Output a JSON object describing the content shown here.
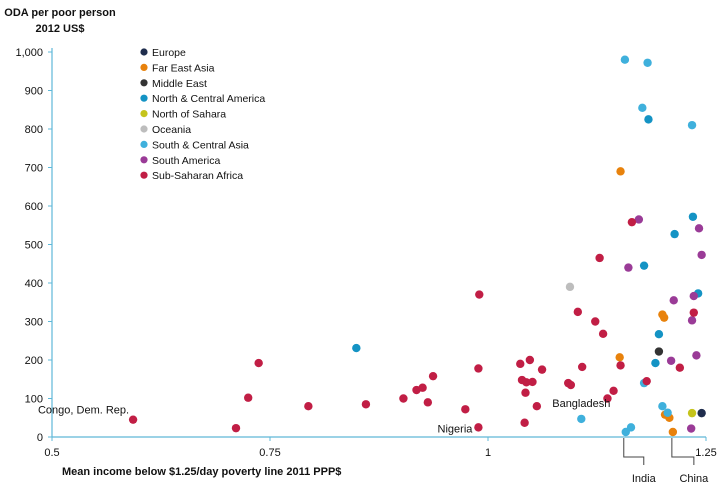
{
  "chart_data": {
    "type": "scatter",
    "ylabel": [
      "ODA per poor person",
      "2012 US$"
    ],
    "xlabel": "Mean income below $1.25/day poverty line 2011 PPP$",
    "xlim": [
      0.5,
      1.25
    ],
    "ylim": [
      0,
      1000
    ],
    "x_ticks": [
      {
        "value": 0.5,
        "label": "0.5"
      },
      {
        "value": 0.75,
        "label": "0.75"
      },
      {
        "value": 1.0,
        "label": "1"
      },
      {
        "value": 1.25,
        "label": "1.25"
      }
    ],
    "y_ticks": [
      {
        "value": 0,
        "label": "0"
      },
      {
        "value": 100,
        "label": "100"
      },
      {
        "value": 200,
        "label": "200"
      },
      {
        "value": 300,
        "label": "300"
      },
      {
        "value": 400,
        "label": "400"
      },
      {
        "value": 500,
        "label": "500"
      },
      {
        "value": 600,
        "label": "600"
      },
      {
        "value": 700,
        "label": "700"
      },
      {
        "value": 800,
        "label": "800"
      },
      {
        "value": 900,
        "label": "900"
      },
      {
        "value": 1000,
        "label": "1,000"
      }
    ],
    "legend_position": "top-left",
    "series": [
      {
        "name": "Europe",
        "color": "#1f2d4d",
        "points": [
          [
            1.245,
            62
          ]
        ]
      },
      {
        "name": "Far East Asia",
        "color": "#e8820c",
        "points": [
          [
            1.152,
            690
          ],
          [
            1.151,
            207
          ],
          [
            1.2,
            318
          ],
          [
            1.202,
            310
          ],
          [
            1.203,
            58
          ],
          [
            1.208,
            50
          ],
          [
            1.212,
            13
          ]
        ]
      },
      {
        "name": "Middle East",
        "color": "#333333",
        "points": [
          [
            1.196,
            222
          ]
        ]
      },
      {
        "name": "North & Central America",
        "color": "#1493c4",
        "points": [
          [
            0.849,
            231
          ],
          [
            1.179,
            445
          ],
          [
            1.184,
            825
          ],
          [
            1.214,
            527
          ],
          [
            1.235,
            572
          ],
          [
            1.241,
            373
          ],
          [
            1.196,
            267
          ],
          [
            1.192,
            192
          ]
        ]
      },
      {
        "name": "North of Sahara",
        "color": "#c5c41c",
        "points": [
          [
            1.234,
            62
          ]
        ]
      },
      {
        "name": "Oceania",
        "color": "#bdbdbd",
        "points": [
          [
            1.094,
            390
          ]
        ]
      },
      {
        "name": "South & Central Asia",
        "color": "#3fb0dc",
        "points": [
          [
            1.157,
            980
          ],
          [
            1.183,
            972
          ],
          [
            1.177,
            855
          ],
          [
            1.234,
            810
          ],
          [
            1.107,
            47
          ],
          [
            1.158,
            13
          ],
          [
            1.164,
            25
          ],
          [
            1.2,
            80
          ],
          [
            1.206,
            63
          ],
          [
            1.179,
            140
          ]
        ]
      },
      {
        "name": "South America",
        "color": "#9a3b97",
        "points": [
          [
            1.173,
            565
          ],
          [
            1.161,
            440
          ],
          [
            1.242,
            542
          ],
          [
            1.245,
            473
          ],
          [
            1.236,
            366
          ],
          [
            1.213,
            355
          ],
          [
            1.234,
            303
          ],
          [
            1.239,
            212
          ],
          [
            1.21,
            198
          ],
          [
            1.233,
            22
          ]
        ]
      },
      {
        "name": "Sub-Saharan Africa",
        "color": "#c11e45",
        "points": [
          [
            0.593,
            45
          ],
          [
            0.711,
            23
          ],
          [
            0.725,
            102
          ],
          [
            0.737,
            192
          ],
          [
            0.794,
            80
          ],
          [
            0.86,
            85
          ],
          [
            0.903,
            100
          ],
          [
            0.918,
            122
          ],
          [
            0.925,
            128
          ],
          [
            0.931,
            90
          ],
          [
            0.937,
            158
          ],
          [
            0.974,
            72
          ],
          [
            0.989,
            25
          ],
          [
            0.99,
            370
          ],
          [
            0.989,
            178
          ],
          [
            1.037,
            190
          ],
          [
            1.039,
            148
          ],
          [
            1.043,
            115
          ],
          [
            1.044,
            142
          ],
          [
            1.048,
            200
          ],
          [
            1.051,
            143
          ],
          [
            1.056,
            80
          ],
          [
            1.062,
            175
          ],
          [
            1.042,
            37
          ],
          [
            1.092,
            140
          ],
          [
            1.095,
            135
          ],
          [
            1.103,
            325
          ],
          [
            1.108,
            182
          ],
          [
            1.123,
            300
          ],
          [
            1.128,
            465
          ],
          [
            1.132,
            268
          ],
          [
            1.137,
            100
          ],
          [
            1.144,
            120
          ],
          [
            1.152,
            186
          ],
          [
            1.165,
            558
          ],
          [
            1.182,
            145
          ],
          [
            1.22,
            180
          ],
          [
            1.236,
            323
          ]
        ]
      }
    ],
    "annotations": [
      {
        "text": "Congo, Dem. Rep.",
        "x": 0.593,
        "y": 45
      },
      {
        "text": "Nigeria",
        "x": 0.989,
        "y": 25
      },
      {
        "text": "Bangladesh",
        "x": 1.107,
        "y": 47
      },
      {
        "text": "India",
        "x": 1.158,
        "y": 13
      },
      {
        "text": "China",
        "x": 1.212,
        "y": 13
      }
    ]
  }
}
